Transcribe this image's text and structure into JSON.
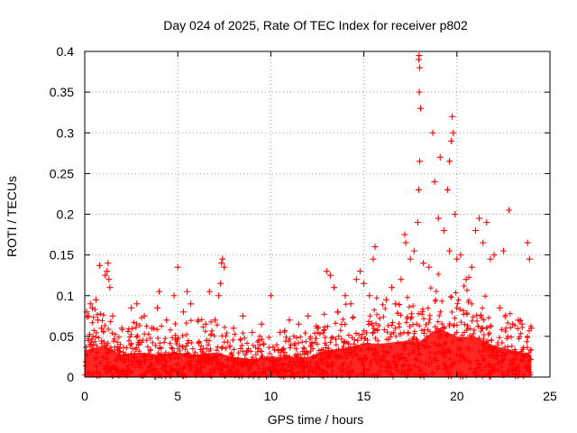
{
  "chart_data": {
    "type": "scatter",
    "title": "Day 024 of 2025, Rate Of TEC Index for receiver p802",
    "xlabel": "GPS time / hours",
    "ylabel": "ROTI / TECUs",
    "xlim": [
      0,
      25
    ],
    "ylim": [
      0,
      0.4
    ],
    "x_ticks": [
      0,
      5,
      10,
      15,
      20,
      25
    ],
    "x_tick_labels": [
      "0",
      "5",
      "10",
      "15",
      "20",
      "25"
    ],
    "y_ticks": [
      0,
      0.05,
      0.1,
      0.15,
      0.2,
      0.25,
      0.3,
      0.35,
      0.4
    ],
    "y_tick_labels": [
      "0",
      "0.05",
      "0.1",
      "0.15",
      "0.2",
      "0.25",
      "0.3",
      "0.35",
      "0.4"
    ],
    "grid": true,
    "marker": "+",
    "marker_color": "#ff0000",
    "series": [
      {
        "name": "ROTI",
        "points": [
          [
            0.1,
            0.08
          ],
          [
            0.2,
            0.075
          ],
          [
            0.3,
            0.09
          ],
          [
            0.4,
            0.085
          ],
          [
            0.6,
            0.095
          ],
          [
            0.7,
            0.07
          ],
          [
            0.9,
            0.06
          ],
          [
            0.8,
            0.137
          ],
          [
            1.1,
            0.125
          ],
          [
            1.2,
            0.13
          ],
          [
            1.25,
            0.14
          ],
          [
            1.3,
            0.12
          ],
          [
            1.35,
            0.11
          ],
          [
            1.5,
            0.075
          ],
          [
            2.0,
            0.06
          ],
          [
            2.5,
            0.085
          ],
          [
            2.8,
            0.09
          ],
          [
            3.2,
            0.075
          ],
          [
            3.6,
            0.06
          ],
          [
            3.9,
            0.085
          ],
          [
            4.0,
            0.105
          ],
          [
            4.4,
            0.07
          ],
          [
            4.8,
            0.1
          ],
          [
            5.0,
            0.135
          ],
          [
            5.3,
            0.08
          ],
          [
            5.5,
            0.105
          ],
          [
            5.7,
            0.09
          ],
          [
            6.1,
            0.07
          ],
          [
            6.5,
            0.065
          ],
          [
            6.7,
            0.105
          ],
          [
            7.0,
            0.07
          ],
          [
            7.2,
            0.1
          ],
          [
            7.35,
            0.14
          ],
          [
            7.4,
            0.145
          ],
          [
            7.5,
            0.135
          ],
          [
            7.3,
            0.115
          ],
          [
            8.0,
            0.06
          ],
          [
            8.5,
            0.075
          ],
          [
            9.0,
            0.055
          ],
          [
            9.5,
            0.065
          ],
          [
            10.0,
            0.1
          ],
          [
            10.5,
            0.055
          ],
          [
            11.0,
            0.07
          ],
          [
            11.5,
            0.065
          ],
          [
            12.0,
            0.075
          ],
          [
            12.5,
            0.06
          ],
          [
            13.0,
            0.13
          ],
          [
            13.2,
            0.125
          ],
          [
            13.4,
            0.11
          ],
          [
            13.6,
            0.08
          ],
          [
            14.0,
            0.1
          ],
          [
            14.3,
            0.09
          ],
          [
            14.6,
            0.12
          ],
          [
            14.8,
            0.13
          ],
          [
            15.0,
            0.115
          ],
          [
            15.3,
            0.1
          ],
          [
            15.6,
            0.16
          ],
          [
            15.5,
            0.145
          ],
          [
            16.2,
            0.095
          ],
          [
            16.5,
            0.11
          ],
          [
            16.7,
            0.09
          ],
          [
            17.0,
            0.12
          ],
          [
            17.2,
            0.175
          ],
          [
            17.25,
            0.165
          ],
          [
            17.5,
            0.145
          ],
          [
            17.7,
            0.155
          ],
          [
            17.9,
            0.19
          ],
          [
            17.95,
            0.23
          ],
          [
            18.0,
            0.265
          ],
          [
            18.05,
            0.33
          ],
          [
            17.98,
            0.35
          ],
          [
            18.0,
            0.38
          ],
          [
            17.95,
            0.39
          ],
          [
            17.97,
            0.395
          ],
          [
            18.2,
            0.14
          ],
          [
            18.5,
            0.135
          ],
          [
            18.7,
            0.3
          ],
          [
            18.8,
            0.24
          ],
          [
            19.0,
            0.195
          ],
          [
            19.1,
            0.27
          ],
          [
            19.3,
            0.18
          ],
          [
            19.5,
            0.23
          ],
          [
            19.6,
            0.265
          ],
          [
            19.7,
            0.29
          ],
          [
            19.75,
            0.32
          ],
          [
            19.8,
            0.3
          ],
          [
            19.9,
            0.2
          ],
          [
            19.6,
            0.155
          ],
          [
            20.0,
            0.145
          ],
          [
            20.2,
            0.15
          ],
          [
            20.5,
            0.12
          ],
          [
            20.8,
            0.135
          ],
          [
            21.0,
            0.18
          ],
          [
            21.2,
            0.195
          ],
          [
            21.4,
            0.165
          ],
          [
            21.6,
            0.19
          ],
          [
            21.8,
            0.145
          ],
          [
            22.0,
            0.15
          ],
          [
            22.3,
            0.085
          ],
          [
            22.5,
            0.155
          ],
          [
            22.8,
            0.205
          ],
          [
            23.0,
            0.065
          ],
          [
            23.3,
            0.07
          ],
          [
            23.5,
            0.065
          ],
          [
            23.8,
            0.165
          ],
          [
            23.9,
            0.145
          ],
          [
            24.0,
            0.06
          ]
        ]
      }
    ]
  }
}
